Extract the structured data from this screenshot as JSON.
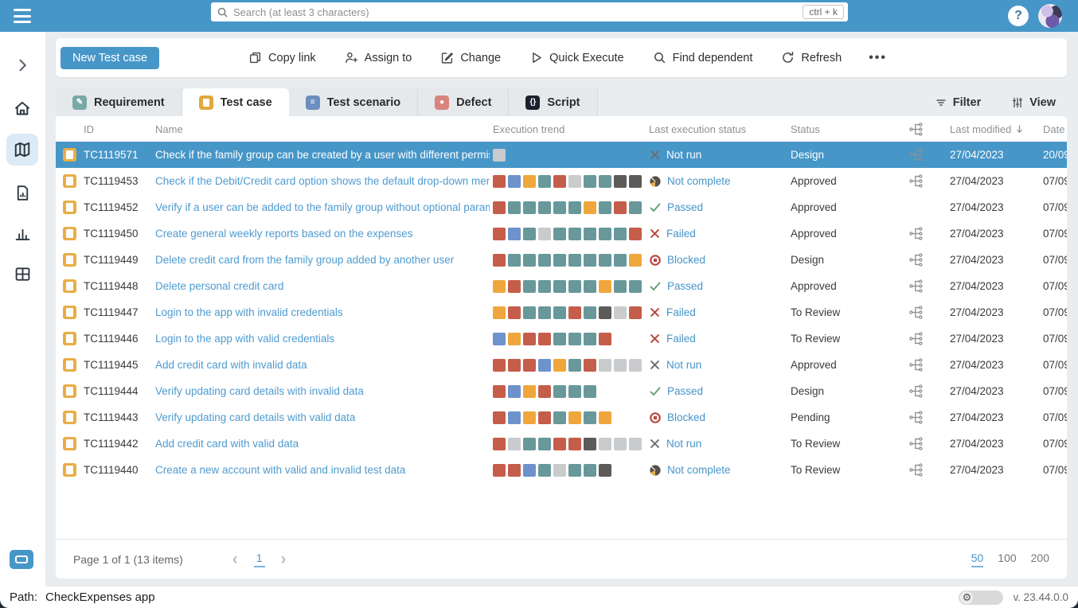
{
  "topbar": {
    "search_placeholder": "Search (at least 3 characters)",
    "search_shortcut": "ctrl + k",
    "help_label": "?"
  },
  "toolbar": {
    "new_button": "New Test case",
    "actions": [
      {
        "label": "Copy link",
        "icon": "copy"
      },
      {
        "label": "Assign to",
        "icon": "assign"
      },
      {
        "label": "Change",
        "icon": "change"
      },
      {
        "label": "Quick Execute",
        "icon": "play"
      },
      {
        "label": "Find dependent",
        "icon": "search"
      },
      {
        "label": "Refresh",
        "icon": "refresh"
      }
    ],
    "more_label": "•••"
  },
  "tabs": [
    {
      "label": "Requirement",
      "icon": "requirement-icon",
      "color": "#7aa9a5",
      "glyph": "✎",
      "active": false
    },
    {
      "label": "Test case",
      "icon": "test-case-icon",
      "color": "#e2a83e",
      "glyph": "",
      "active": true
    },
    {
      "label": "Test scenario",
      "icon": "test-scenario-icon",
      "color": "#6b8fbf",
      "glyph": "≡",
      "active": false
    },
    {
      "label": "Defect",
      "icon": "defect-icon",
      "color": "#d9847e",
      "glyph": "●",
      "active": false
    },
    {
      "label": "Script",
      "icon": "script-icon",
      "color": "#18222e",
      "glyph": "{}",
      "active": false
    }
  ],
  "table_controls": {
    "filter": "Filter",
    "view": "View"
  },
  "table": {
    "headers": {
      "id": "ID",
      "name": "Name",
      "trend": "Execution trend",
      "exec": "Last execution status",
      "status": "Status",
      "modified": "Last modified",
      "date": "Date"
    },
    "rows": [
      {
        "id": "TC1119571",
        "name": "Check if the family group can be created by a user with different permissions",
        "trend": [
          "gray"
        ],
        "exec_label": "Not run",
        "exec_icon": "not-run",
        "status": "Design",
        "relations": true,
        "modified": "27/04/2023",
        "date": "20/09",
        "selected": true
      },
      {
        "id": "TC1119453",
        "name": "Check if the Debit/Credit card option shows the default drop-down menu.",
        "trend": [
          "red",
          "blue",
          "orange",
          "teal",
          "red",
          "gray",
          "teal",
          "teal",
          "dark",
          "dark"
        ],
        "exec_label": "Not complete",
        "exec_icon": "not-complete",
        "status": "Approved",
        "relations": true,
        "modified": "27/04/2023",
        "date": "07/09",
        "selected": false
      },
      {
        "id": "TC1119452",
        "name": "Verify if a user can be added to the family group without optional parameters",
        "trend": [
          "red",
          "teal",
          "teal",
          "teal",
          "teal",
          "teal",
          "orange",
          "teal",
          "red",
          "teal"
        ],
        "exec_label": "Passed",
        "exec_icon": "passed",
        "status": "Approved",
        "relations": false,
        "modified": "27/04/2023",
        "date": "07/09",
        "selected": false
      },
      {
        "id": "TC1119450",
        "name": "Create general weekly reports based on the expenses",
        "trend": [
          "red",
          "blue",
          "teal",
          "gray",
          "teal",
          "teal",
          "teal",
          "teal",
          "teal",
          "red"
        ],
        "exec_label": "Failed",
        "exec_icon": "failed",
        "status": "Approved",
        "relations": true,
        "modified": "27/04/2023",
        "date": "07/09",
        "selected": false
      },
      {
        "id": "TC1119449",
        "name": "Delete credit card from the family group added by another user",
        "trend": [
          "red",
          "teal",
          "teal",
          "teal",
          "teal",
          "teal",
          "teal",
          "teal",
          "teal",
          "orange"
        ],
        "exec_label": "Blocked",
        "exec_icon": "blocked",
        "status": "Design",
        "relations": true,
        "modified": "27/04/2023",
        "date": "07/09",
        "selected": false
      },
      {
        "id": "TC1119448",
        "name": "Delete personal credit card",
        "trend": [
          "orange",
          "red",
          "teal",
          "teal",
          "teal",
          "teal",
          "teal",
          "orange",
          "teal",
          "teal"
        ],
        "exec_label": "Passed",
        "exec_icon": "passed",
        "status": "Approved",
        "relations": true,
        "modified": "27/04/2023",
        "date": "07/09",
        "selected": false
      },
      {
        "id": "TC1119447",
        "name": "Login to the app with invalid credentials",
        "trend": [
          "orange",
          "red",
          "teal",
          "teal",
          "teal",
          "red",
          "teal",
          "dark",
          "gray",
          "red"
        ],
        "exec_label": "Failed",
        "exec_icon": "failed",
        "status": "To Review",
        "relations": true,
        "modified": "27/04/2023",
        "date": "07/09",
        "selected": false
      },
      {
        "id": "TC1119446",
        "name": "Login to the app with valid credentials",
        "trend": [
          "blue",
          "orange",
          "red",
          "red",
          "teal",
          "teal",
          "teal",
          "red"
        ],
        "exec_label": "Failed",
        "exec_icon": "failed",
        "status": "To Review",
        "relations": true,
        "modified": "27/04/2023",
        "date": "07/09",
        "selected": false
      },
      {
        "id": "TC1119445",
        "name": "Add credit card with invalid data",
        "trend": [
          "red",
          "red",
          "red",
          "blue",
          "orange",
          "teal",
          "red",
          "gray",
          "gray",
          "gray"
        ],
        "exec_label": "Not run",
        "exec_icon": "not-run",
        "status": "Approved",
        "relations": true,
        "modified": "27/04/2023",
        "date": "07/09",
        "selected": false
      },
      {
        "id": "TC1119444",
        "name": "Verify updating card details with invalid data",
        "trend": [
          "red",
          "blue",
          "orange",
          "red",
          "teal",
          "teal",
          "teal"
        ],
        "exec_label": "Passed",
        "exec_icon": "passed",
        "status": "Design",
        "relations": true,
        "modified": "27/04/2023",
        "date": "07/09",
        "selected": false
      },
      {
        "id": "TC1119443",
        "name": "Verify updating card details with valid data",
        "trend": [
          "red",
          "blue",
          "orange",
          "red",
          "teal",
          "orange",
          "teal",
          "orange"
        ],
        "exec_label": "Blocked",
        "exec_icon": "blocked",
        "status": "Pending",
        "relations": true,
        "modified": "27/04/2023",
        "date": "07/09",
        "selected": false
      },
      {
        "id": "TC1119442",
        "name": "Add credit card with valid data",
        "trend": [
          "red",
          "gray",
          "teal",
          "teal",
          "red",
          "red",
          "dark",
          "gray",
          "gray",
          "gray"
        ],
        "exec_label": "Not run",
        "exec_icon": "not-run",
        "status": "To Review",
        "relations": true,
        "modified": "27/04/2023",
        "date": "07/09",
        "selected": false
      },
      {
        "id": "TC1119440",
        "name": "Create a new account with valid and invalid test data",
        "trend": [
          "red",
          "red",
          "blue",
          "teal",
          "gray",
          "teal",
          "teal",
          "dark"
        ],
        "exec_label": "Not complete",
        "exec_icon": "not-complete",
        "status": "To Review",
        "relations": true,
        "modified": "27/04/2023",
        "date": "07/09",
        "selected": false
      }
    ]
  },
  "pagination": {
    "summary": "Page 1 of 1 (13 items)",
    "current_page": "1",
    "page_sizes": [
      "50",
      "100",
      "200"
    ],
    "active_page_size": "50"
  },
  "statusbar": {
    "path_label": "Path:",
    "path_value": "CheckExpenses app",
    "version": "v. 23.44.0.0"
  },
  "colors": {
    "accent": "#4796c8",
    "link": "#4694c9",
    "trend": {
      "red": "#c55d4b",
      "blue": "#6d92cc",
      "orange": "#efa73d",
      "teal": "#68989a",
      "gray": "#c9cbcc",
      "dark": "#5d5a5a"
    },
    "status_icons": {
      "passed": "#69a07a",
      "failed": "#b8473f",
      "blocked": "#b8473f",
      "not_run": "#6e6e6e",
      "not_complete": "#56504b"
    }
  }
}
